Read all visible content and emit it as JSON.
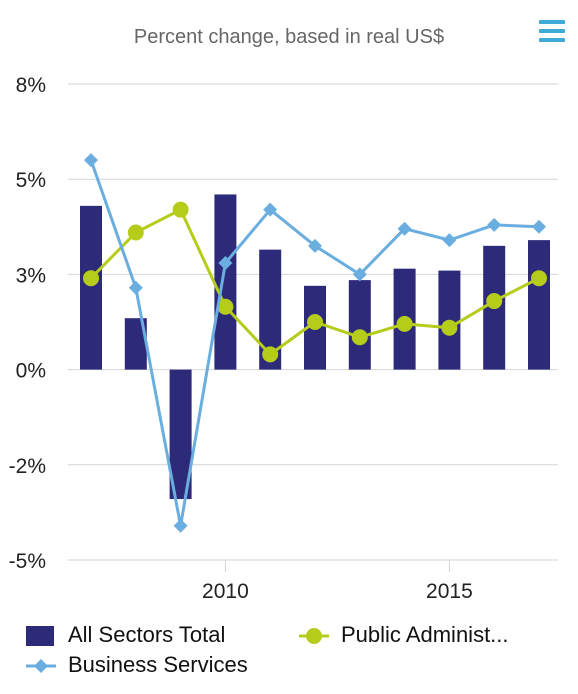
{
  "title": "Percent change, based in real US$",
  "menu_icon": "hamburger-menu-icon",
  "colors": {
    "bars": "#2d2a7a",
    "business": "#6aaee0",
    "public": "#b6cc1b",
    "grid": "#d6d6d6",
    "axis_text": "#222222"
  },
  "chart_data": {
    "type": "bar",
    "title": "Percent change, based in real US$",
    "x": [
      2007,
      2008,
      2009,
      2010,
      2011,
      2012,
      2013,
      2014,
      2015,
      2016,
      2017
    ],
    "x_ticks": [
      2010,
      2015
    ],
    "x_tick_labels": [
      "2010",
      "2015"
    ],
    "y_ticks": [
      -5,
      -2.5,
      0,
      2.5,
      5,
      7.5
    ],
    "y_tick_labels": [
      "-5%",
      "-2%",
      "0%",
      "3%",
      "5%",
      "8%"
    ],
    "ylim": [
      -5,
      7.5
    ],
    "grid": true,
    "legend_position": "bottom",
    "series": [
      {
        "name": "All Sectors Total",
        "type": "bar",
        "values": [
          4.3,
          1.35,
          -3.4,
          4.6,
          3.15,
          2.2,
          2.35,
          2.65,
          2.6,
          3.25,
          3.4
        ]
      },
      {
        "name": "Business Services",
        "type": "line",
        "marker": "diamond",
        "values": [
          5.5,
          2.15,
          -4.1,
          2.8,
          4.2,
          3.25,
          2.5,
          3.7,
          3.4,
          3.8,
          3.75
        ]
      },
      {
        "name": "Public Administ...",
        "type": "line",
        "marker": "circle",
        "values": [
          2.4,
          3.6,
          4.2,
          1.65,
          0.4,
          1.25,
          0.85,
          1.2,
          1.1,
          1.8,
          2.4
        ]
      }
    ]
  }
}
